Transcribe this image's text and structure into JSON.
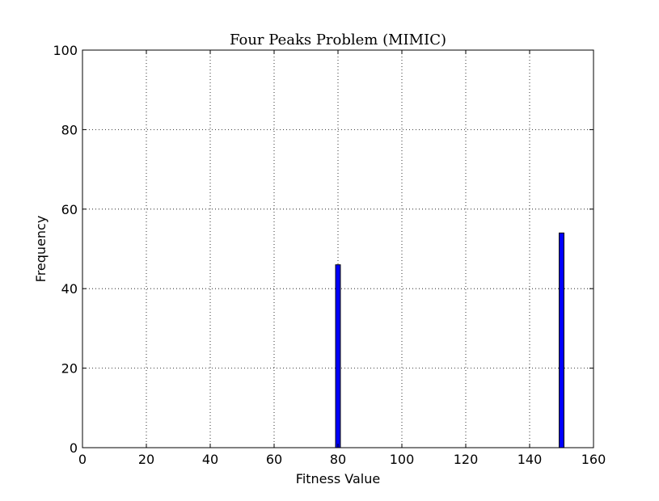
{
  "chart_data": {
    "type": "bar",
    "title": "Four Peaks Problem (MIMIC)",
    "xlabel": "Fitness Value",
    "ylabel": "Frequency",
    "xlim": [
      0,
      160
    ],
    "ylim": [
      0,
      100
    ],
    "xticks": [
      0,
      20,
      40,
      60,
      80,
      100,
      120,
      140,
      160
    ],
    "yticks": [
      0,
      20,
      40,
      60,
      80,
      100
    ],
    "grid": true,
    "bars": [
      {
        "x": 80,
        "width": 1.5,
        "value": 46
      },
      {
        "x": 150,
        "width": 1.5,
        "value": 54
      }
    ],
    "bar_color": "#0000ff",
    "edge_color": "#000000"
  }
}
